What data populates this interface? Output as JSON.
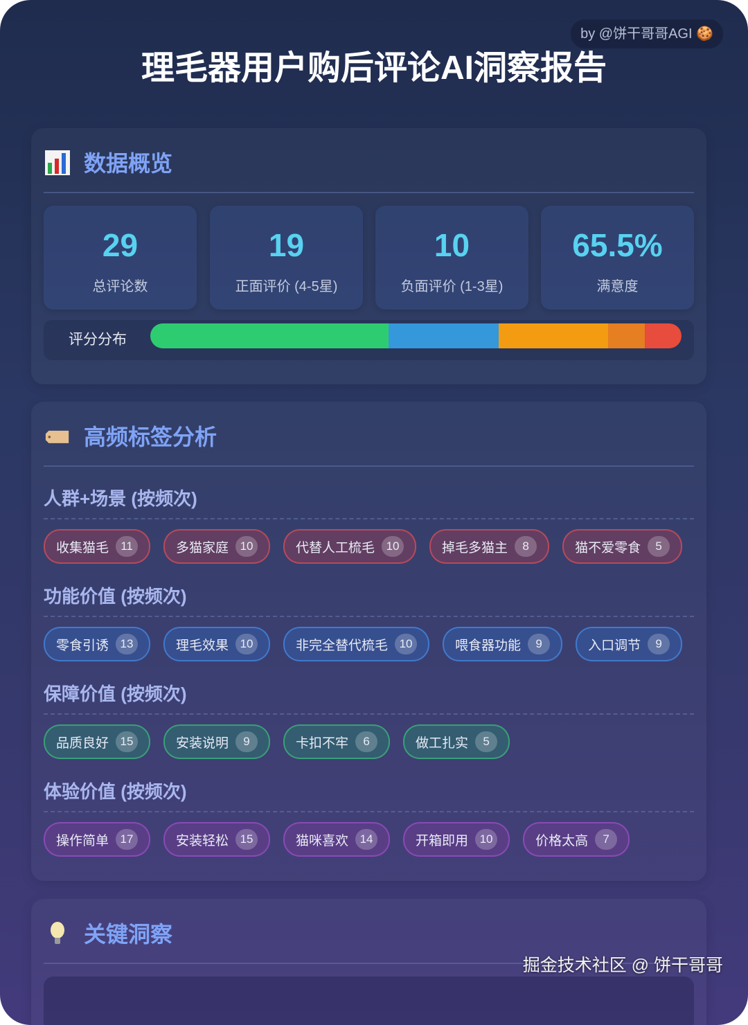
{
  "header": {
    "title": "理毛器用户购后评论AI洞察报告",
    "byline": "by @饼干哥哥AGI",
    "byline_icon": "cookie-icon"
  },
  "overview": {
    "icon": "bar-chart-icon",
    "title": "数据概览",
    "stats": [
      {
        "value": "29",
        "label": "总评论数"
      },
      {
        "value": "19",
        "label": "正面评价 (4-5星)"
      },
      {
        "value": "10",
        "label": "负面评价 (1-3星)"
      },
      {
        "value": "65.5%",
        "label": "满意度"
      }
    ],
    "distribution": {
      "label": "评分分布",
      "segments": [
        {
          "stars": 5,
          "count": 13,
          "color": "#2ecc71"
        },
        {
          "stars": 4,
          "count": 6,
          "color": "#3498db"
        },
        {
          "stars": 3,
          "count": 6,
          "color": "#f39c12"
        },
        {
          "stars": 2,
          "count": 2,
          "color": "#e67e22"
        },
        {
          "stars": 1,
          "count": 2,
          "color": "#e74c3c"
        }
      ]
    }
  },
  "tags_section": {
    "icon": "label-tag-icon",
    "title": "高频标签分析",
    "groups": [
      {
        "title": "人群+场景 (按频次)",
        "style": "red",
        "tags": [
          {
            "label": "收集猫毛",
            "count": "11"
          },
          {
            "label": "多猫家庭",
            "count": "10"
          },
          {
            "label": "代替人工梳毛",
            "count": "10"
          },
          {
            "label": "掉毛多猫主",
            "count": "8"
          },
          {
            "label": "猫不爱零食",
            "count": "5"
          }
        ]
      },
      {
        "title": "功能价值 (按频次)",
        "style": "blue",
        "tags": [
          {
            "label": "零食引诱",
            "count": "13"
          },
          {
            "label": "理毛效果",
            "count": "10"
          },
          {
            "label": "非完全替代梳毛",
            "count": "10"
          },
          {
            "label": "喂食器功能",
            "count": "9"
          },
          {
            "label": "入口调节",
            "count": "9"
          }
        ]
      },
      {
        "title": "保障价值 (按频次)",
        "style": "green",
        "tags": [
          {
            "label": "品质良好",
            "count": "15"
          },
          {
            "label": "安装说明",
            "count": "9"
          },
          {
            "label": "卡扣不牢",
            "count": "6"
          },
          {
            "label": "做工扎实",
            "count": "5"
          }
        ]
      },
      {
        "title": "体验价值 (按频次)",
        "style": "purple",
        "tags": [
          {
            "label": "操作简单",
            "count": "17"
          },
          {
            "label": "安装轻松",
            "count": "15"
          },
          {
            "label": "猫咪喜欢",
            "count": "14"
          },
          {
            "label": "开箱即用",
            "count": "10"
          },
          {
            "label": "价格太高",
            "count": "7"
          }
        ]
      }
    ]
  },
  "insights": {
    "icon": "lightbulb-icon",
    "title": "关键洞察"
  },
  "watermark": "掘金技术社区 @ 饼干哥哥"
}
